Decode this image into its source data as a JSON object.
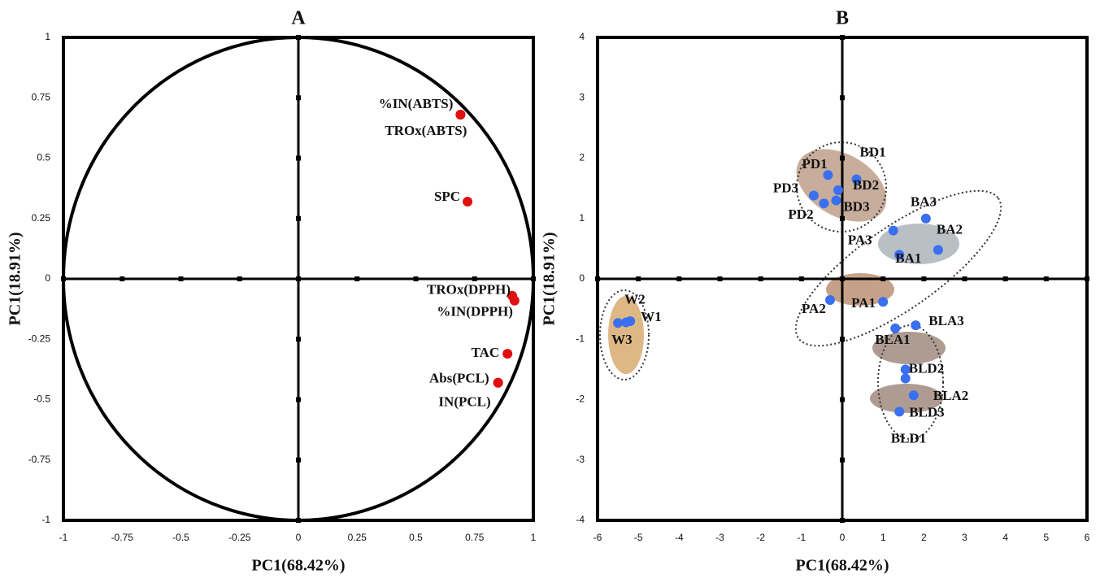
{
  "chart_data": [
    {
      "type": "scatter",
      "title": "A",
      "x_label": "PC1(68.42%)",
      "y_label": "PC1(18.91%)",
      "color": "#e01010",
      "unit_circle": true,
      "labels": [
        "%IN(ABTS)",
        "TROx(ABTS)",
        "SPC",
        "TROx(DPPH)",
        "%IN(DPPH)",
        "TAC",
        "Abs(PCL)",
        "IN(PCL)"
      ],
      "x": [
        0.69,
        0.69,
        0.72,
        0.91,
        0.92,
        0.89,
        0.85,
        0.85
      ],
      "y": [
        0.68,
        0.68,
        0.32,
        -0.07,
        -0.09,
        -0.31,
        -0.43,
        -0.43
      ],
      "xlim": [
        -1,
        1
      ],
      "ylim": [
        -1,
        1
      ],
      "xticks": [
        -1,
        -0.75,
        -0.5,
        -0.25,
        0,
        0.25,
        0.5,
        0.75,
        1
      ],
      "yticks": [
        -1,
        -0.75,
        -0.5,
        -0.25,
        0,
        0.25,
        0.5,
        0.75,
        1
      ]
    },
    {
      "type": "scatter",
      "title": "B",
      "x_label": "PC1(68.42%)",
      "y_label": "PC1(18.91%)",
      "color": "#3a6ff0",
      "labels": [
        "PD1",
        "BD1",
        "BD2",
        "PD3",
        "BD3",
        "PD2",
        "BA3",
        "PA3",
        "BA2",
        "BA1",
        "PA2",
        "PA1",
        "BLA3",
        "BLA1",
        "BLD2",
        "BLA2",
        "BLD3",
        "BLD1",
        "W2",
        "W1",
        "W3"
      ],
      "x": [
        -0.35,
        0.35,
        -0.1,
        -0.7,
        -0.15,
        -0.45,
        2.05,
        1.25,
        2.35,
        1.4,
        -0.3,
        1.0,
        1.8,
        1.3,
        1.55,
        1.75,
        1.4,
        1.55,
        -5.3,
        -5.2,
        -5.5
      ],
      "y": [
        1.72,
        1.65,
        1.47,
        1.38,
        1.3,
        1.25,
        1.0,
        0.8,
        0.48,
        0.4,
        -0.35,
        -0.38,
        -0.77,
        -0.82,
        -1.5,
        -1.93,
        -2.2,
        -1.65,
        -0.72,
        -0.7,
        -0.73
      ],
      "xlim": [
        -6,
        6
      ],
      "ylim": [
        -4,
        4
      ],
      "xticks": [
        -6,
        -5,
        -4,
        -3,
        -2,
        -1,
        0,
        1,
        2,
        3,
        4,
        5,
        6
      ],
      "yticks": [
        -4,
        -3,
        -2,
        -1,
        0,
        1,
        2,
        3,
        4
      ]
    }
  ]
}
